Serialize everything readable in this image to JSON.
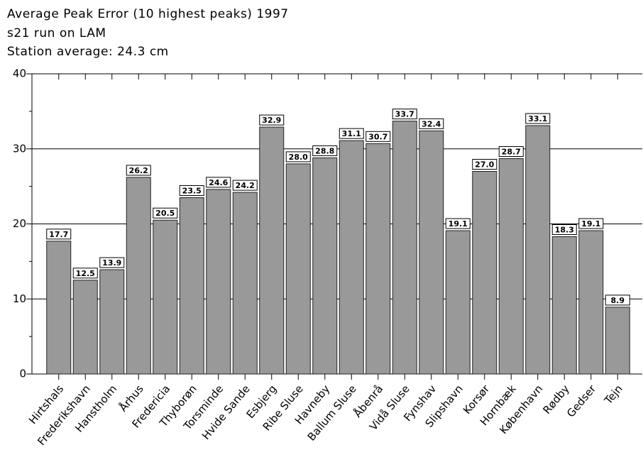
{
  "chart_data": {
    "type": "bar",
    "title": "Average Peak Error (10 highest peaks) 1997",
    "subtitle": [
      "s21 run on LAM",
      "Station average: 24.3 cm"
    ],
    "categories": [
      "Hirtshals",
      "Frederikshavn",
      "Hanstholm",
      "Århus",
      "Fredericia",
      "Thyborøn",
      "Torsminde",
      "Hvide Sande",
      "Esbjerg",
      "Ribe Sluse",
      "Havneby",
      "Ballum Sluse",
      "Åbenrå",
      "Vidå Sluse",
      "Fynshav",
      "Slipshavn",
      "Korsør",
      "Hornbæk",
      "København",
      "Rødby",
      "Gedser",
      "Tejn"
    ],
    "values": [
      17.7,
      12.5,
      13.9,
      26.2,
      20.5,
      23.5,
      24.6,
      24.2,
      32.9,
      28.0,
      28.8,
      31.1,
      30.7,
      33.7,
      32.4,
      19.1,
      27.0,
      28.7,
      33.1,
      18.3,
      19.1,
      8.9
    ],
    "value_labels": [
      "17.7",
      "12.5",
      "13.9",
      "26.2",
      "20.5",
      "23.5",
      "24.6",
      "24.2",
      "32.9",
      "28.0",
      "28.8",
      "31.1",
      "30.7",
      "33.7",
      "32.4",
      "19.1",
      "27.0",
      "28.7",
      "33.1",
      "18.3",
      "19.1",
      "8.9"
    ],
    "color": "#999999",
    "ylim": [
      0,
      40
    ],
    "yticks": [
      0,
      10,
      20,
      30,
      40
    ],
    "grid": true
  }
}
